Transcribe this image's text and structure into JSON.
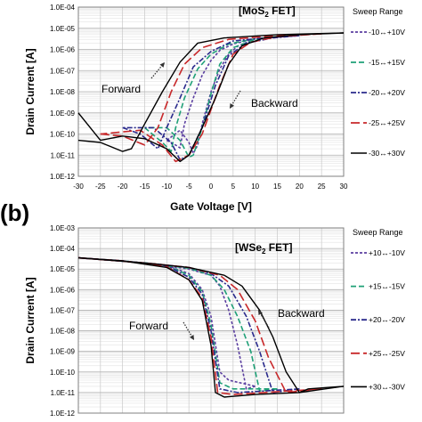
{
  "panel_b_label": "(b)",
  "chart_data": [
    {
      "type": "line",
      "title": "[MoS2 FET]",
      "title_main": "[MoS",
      "title_sub": "2",
      "title_rest": " FET]",
      "xlabel": "Gate Voltage [V]",
      "ylabel": "Drain Current [A]",
      "xlim": [
        -30,
        30
      ],
      "ylim": [
        1e-12,
        0.0001
      ],
      "yscale": "log",
      "grid": true,
      "x_ticks": [
        "-30",
        "-25",
        "-20",
        "-15",
        "-10",
        "-5",
        "0",
        "5",
        "10",
        "15",
        "20",
        "25",
        "30"
      ],
      "y_ticks": [
        "1.0E-12",
        "1.0E-11",
        "1.0E-10",
        "1.0E-09",
        "1.0E-08",
        "1.0E-07",
        "1.0E-06",
        "1.0E-05",
        "1.0E-04"
      ],
      "legend_title": "Sweep Range",
      "legend_placement": "right",
      "annotations": [
        {
          "text": "Forward",
          "arrow": "up-right"
        },
        {
          "text": "Backward",
          "arrow": "down-left"
        }
      ],
      "series": [
        {
          "name": "-10↔+10V",
          "color": "#5b3fa0",
          "dash": "3,2",
          "forward": [
            [
              -10,
              5e-11
            ],
            [
              -8,
              3e-11
            ],
            [
              -7,
              2.2e-11
            ],
            [
              -6,
              3e-10
            ],
            [
              -4,
              5e-09
            ],
            [
              -2,
              6e-08
            ],
            [
              0,
              3e-07
            ],
            [
              2,
              9e-07
            ],
            [
              5,
              1.8e-06
            ],
            [
              10,
              3.2e-06
            ]
          ],
          "backward": [
            [
              10,
              3.2e-06
            ],
            [
              6,
              1.4e-06
            ],
            [
              4,
              6e-07
            ],
            [
              2,
              1.2e-07
            ],
            [
              0,
              1e-08
            ],
            [
              -2,
              3e-10
            ],
            [
              -3,
              3e-11
            ],
            [
              -4,
              1.2e-11
            ],
            [
              -5,
              4e-11
            ],
            [
              -7,
              1.5e-10
            ],
            [
              -10,
              5e-11
            ]
          ]
        },
        {
          "name": "-15↔+15V",
          "color": "#1fa077",
          "dash": "6,3",
          "forward": [
            [
              -15,
              2e-10
            ],
            [
              -11,
              4e-11
            ],
            [
              -9,
              1.5e-11
            ],
            [
              -8,
              2e-10
            ],
            [
              -6,
              5e-09
            ],
            [
              -3,
              1.2e-07
            ],
            [
              0,
              6e-07
            ],
            [
              4,
              1.8e-06
            ],
            [
              10,
              3.2e-06
            ],
            [
              15,
              4e-06
            ]
          ],
          "backward": [
            [
              15,
              4e-06
            ],
            [
              10,
              3e-06
            ],
            [
              5,
              1.2e-06
            ],
            [
              2,
              2e-07
            ],
            [
              0,
              8e-09
            ],
            [
              -2,
              2e-10
            ],
            [
              -4,
              1e-11
            ],
            [
              -5,
              8e-12
            ],
            [
              -7,
              5e-11
            ],
            [
              -10,
              2e-10
            ],
            [
              -15,
              2e-10
            ]
          ]
        },
        {
          "name": "-20↔+20V",
          "color": "#2a2a8c",
          "dash": "6,2,2,2",
          "forward": [
            [
              -20,
              2e-10
            ],
            [
              -16,
              1e-10
            ],
            [
              -12,
              2e-11
            ],
            [
              -10,
              2e-10
            ],
            [
              -7,
              5e-09
            ],
            [
              -4,
              1.5e-07
            ],
            [
              0,
              8e-07
            ],
            [
              5,
              2.5e-06
            ],
            [
              12,
              3.5e-06
            ],
            [
              20,
              4.5e-06
            ]
          ],
          "backward": [
            [
              20,
              4.5e-06
            ],
            [
              14,
              3.5e-06
            ],
            [
              8,
              2e-06
            ],
            [
              4,
              5e-07
            ],
            [
              1,
              2e-08
            ],
            [
              -2,
              2e-10
            ],
            [
              -5,
              1e-11
            ],
            [
              -7,
              6e-12
            ],
            [
              -9,
              4e-11
            ],
            [
              -13,
              2e-10
            ],
            [
              -20,
              2e-10
            ]
          ]
        },
        {
          "name": "-25↔+25V",
          "color": "#c8282a",
          "dash": "10,4",
          "forward": [
            [
              -25,
              1e-10
            ],
            [
              -20,
              8e-11
            ],
            [
              -15,
              3e-11
            ],
            [
              -12,
              2e-10
            ],
            [
              -9,
              1e-08
            ],
            [
              -6,
              2e-07
            ],
            [
              -2,
              1.2e-06
            ],
            [
              4,
              3e-06
            ],
            [
              12,
              4e-06
            ],
            [
              25,
              5.5e-06
            ]
          ],
          "backward": [
            [
              25,
              5.5e-06
            ],
            [
              15,
              4e-06
            ],
            [
              9,
              2.2e-06
            ],
            [
              5,
              6e-07
            ],
            [
              2,
              2e-08
            ],
            [
              -2,
              1e-10
            ],
            [
              -5,
              1e-11
            ],
            [
              -8,
              5e-12
            ],
            [
              -11,
              3e-11
            ],
            [
              -16,
              1.5e-10
            ],
            [
              -25,
              1e-10
            ]
          ]
        },
        {
          "name": "-30↔+30V",
          "color": "#000000",
          "dash": "",
          "forward": [
            [
              -30,
              5e-11
            ],
            [
              -25,
              4e-11
            ],
            [
              -20,
              1.5e-11
            ],
            [
              -18,
              2e-11
            ],
            [
              -15,
              3e-10
            ],
            [
              -11,
              1e-08
            ],
            [
              -7,
              2.5e-07
            ],
            [
              -3,
              2e-06
            ],
            [
              3,
              3.5e-06
            ],
            [
              15,
              5e-06
            ],
            [
              30,
              6e-06
            ]
          ],
          "backward": [
            [
              30,
              6e-06
            ],
            [
              20,
              5e-06
            ],
            [
              12,
              3.5e-06
            ],
            [
              7,
              1.5e-06
            ],
            [
              4,
              2e-07
            ],
            [
              1,
              5e-09
            ],
            [
              -2,
              2e-10
            ],
            [
              -5,
              1e-11
            ],
            [
              -7,
              5e-12
            ],
            [
              -10,
              2e-11
            ],
            [
              -15,
              6e-11
            ],
            [
              -20,
              8e-11
            ],
            [
              -25,
              5e-11
            ],
            [
              -30,
              1e-09
            ]
          ]
        }
      ]
    },
    {
      "type": "line",
      "title": "[WSe2 FET]",
      "title_main": "[WSe",
      "title_sub": "2",
      "title_rest": " FET]",
      "xlabel": "",
      "ylabel": "Drain Current [A]",
      "xlim": [
        -30,
        30
      ],
      "ylim": [
        1e-12,
        0.001
      ],
      "yscale": "log",
      "grid": true,
      "y_ticks": [
        "1.0E-12",
        "1.0E-11",
        "1.0E-10",
        "1.0E-09",
        "1.0E-08",
        "1.0E-07",
        "1.0E-06",
        "1.0E-05",
        "1.0E-04",
        "1.0E-03"
      ],
      "legend_title": "Sweep Range",
      "legend_placement": "right",
      "annotations": [
        {
          "text": "Forward",
          "arrow": "down-right"
        },
        {
          "text": "Backward",
          "arrow": "up-left"
        }
      ],
      "series": [
        {
          "name": "+10↔-10V",
          "color": "#5b3fa0",
          "dash": "3,2",
          "forward": [
            [
              -30,
              3.5e-05
            ],
            [
              -20,
              2.5e-05
            ],
            [
              -10,
              1.5e-05
            ],
            [
              -5,
              6e-06
            ],
            [
              -2,
              1e-06
            ],
            [
              0,
              5e-08
            ],
            [
              2,
              1e-10
            ],
            [
              4,
              4e-11
            ],
            [
              10,
              2e-11
            ]
          ],
          "backward": [
            [
              10,
              2e-11
            ],
            [
              8,
              1.5e-11
            ],
            [
              6,
              2e-09
            ],
            [
              4,
              1e-07
            ],
            [
              2,
              1.5e-06
            ],
            [
              0,
              5e-06
            ],
            [
              -5,
              1e-05
            ],
            [
              -15,
              2e-05
            ],
            [
              -30,
              3.5e-05
            ]
          ]
        },
        {
          "name": "+15↔-15V",
          "color": "#1fa077",
          "dash": "6,3",
          "forward": [
            [
              -30,
              3.5e-05
            ],
            [
              -20,
              2.5e-05
            ],
            [
              -10,
              1.5e-05
            ],
            [
              -5,
              5e-06
            ],
            [
              -2,
              8e-07
            ],
            [
              0,
              2e-08
            ],
            [
              2,
              3e-11
            ],
            [
              5,
              1.5e-11
            ],
            [
              15,
              1.5e-11
            ]
          ],
          "backward": [
            [
              15,
              1.5e-11
            ],
            [
              11,
              1.2e-11
            ],
            [
              9,
              1e-09
            ],
            [
              6,
              5e-08
            ],
            [
              3,
              1e-06
            ],
            [
              0,
              5e-06
            ],
            [
              -5,
              1.1e-05
            ],
            [
              -15,
              2e-05
            ],
            [
              -30,
              3.5e-05
            ]
          ]
        },
        {
          "name": "+20↔-20V",
          "color": "#2a2a8c",
          "dash": "6,2,2,2",
          "forward": [
            [
              -30,
              3.5e-05
            ],
            [
              -20,
              2.5e-05
            ],
            [
              -10,
              1.4e-05
            ],
            [
              -5,
              4e-06
            ],
            [
              -2,
              6e-07
            ],
            [
              0,
              1e-08
            ],
            [
              2,
              1.5e-11
            ],
            [
              6,
              1e-11
            ],
            [
              20,
              1.5e-11
            ]
          ],
          "backward": [
            [
              20,
              1.5e-11
            ],
            [
              14,
              1e-11
            ],
            [
              11,
              1e-09
            ],
            [
              8,
              5e-08
            ],
            [
              4,
              1.5e-06
            ],
            [
              0,
              6e-06
            ],
            [
              -5,
              1.2e-05
            ],
            [
              -15,
              2e-05
            ],
            [
              -30,
              3.5e-05
            ]
          ]
        },
        {
          "name": "+25↔-25V",
          "color": "#c8282a",
          "dash": "10,4",
          "forward": [
            [
              -30,
              3.5e-05
            ],
            [
              -20,
              2.5e-05
            ],
            [
              -10,
              1.3e-05
            ],
            [
              -5,
              3e-06
            ],
            [
              -2,
              4e-07
            ],
            [
              0,
              5e-09
            ],
            [
              1.5,
              1e-11
            ],
            [
              5,
              8e-12
            ],
            [
              25,
              1.5e-11
            ]
          ],
          "backward": [
            [
              25,
              1.5e-11
            ],
            [
              17,
              1e-11
            ],
            [
              13,
              5e-10
            ],
            [
              10,
              3e-08
            ],
            [
              6,
              1e-06
            ],
            [
              2,
              5e-06
            ],
            [
              -5,
              1.2e-05
            ],
            [
              -15,
              2e-05
            ],
            [
              -30,
              3.5e-05
            ]
          ]
        },
        {
          "name": "+30↔-30V",
          "color": "#000000",
          "dash": "",
          "forward": [
            [
              -30,
              3.5e-05
            ],
            [
              -20,
              2.5e-05
            ],
            [
              -10,
              1.2e-05
            ],
            [
              -5,
              3e-06
            ],
            [
              -2,
              3e-07
            ],
            [
              0,
              2e-09
            ],
            [
              1,
              1e-11
            ],
            [
              3,
              6e-12
            ],
            [
              10,
              8e-12
            ],
            [
              20,
              1e-11
            ],
            [
              30,
              2e-11
            ]
          ],
          "backward": [
            [
              30,
              2e-11
            ],
            [
              22,
              1.5e-11
            ],
            [
              20,
              1e-11
            ],
            [
              17,
              1e-10
            ],
            [
              14,
              5e-09
            ],
            [
              11,
              1e-07
            ],
            [
              7,
              1.5e-06
            ],
            [
              3,
              5e-06
            ],
            [
              -5,
              1.2e-05
            ],
            [
              -15,
              2e-05
            ],
            [
              -30,
              3.5e-05
            ]
          ]
        }
      ]
    }
  ]
}
